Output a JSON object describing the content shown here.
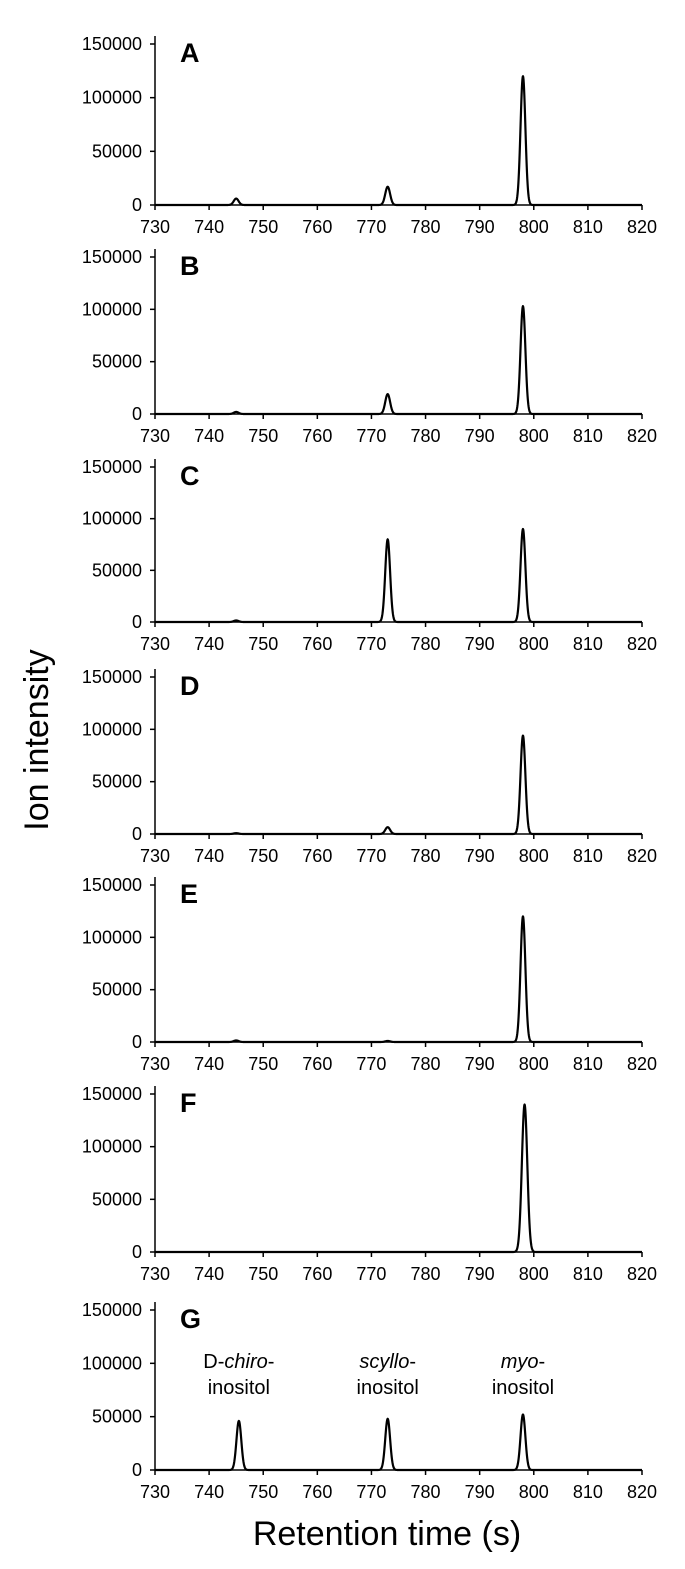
{
  "ylabel": "Ion intensity",
  "xlabel": "Retention time (s)",
  "chart_data": [
    {
      "type": "line",
      "panel": "A",
      "xlim": [
        730,
        820
      ],
      "ylim": [
        0,
        150000
      ],
      "xticks": [
        730,
        740,
        750,
        760,
        770,
        780,
        790,
        800,
        810,
        820
      ],
      "yticks": [
        0,
        50000,
        100000,
        150000
      ],
      "peaks": [
        {
          "x": 745,
          "y": 6000,
          "w": 0.45
        },
        {
          "x": 773,
          "y": 17000,
          "w": 0.45
        },
        {
          "x": 798,
          "y": 120000,
          "w": 0.45
        }
      ],
      "annotations": []
    },
    {
      "type": "line",
      "panel": "B",
      "xlim": [
        730,
        820
      ],
      "ylim": [
        0,
        150000
      ],
      "xticks": [
        730,
        740,
        750,
        760,
        770,
        780,
        790,
        800,
        810,
        820
      ],
      "yticks": [
        0,
        50000,
        100000,
        150000
      ],
      "peaks": [
        {
          "x": 745,
          "y": 2000,
          "w": 0.45
        },
        {
          "x": 773,
          "y": 19000,
          "w": 0.45
        },
        {
          "x": 798,
          "y": 103000,
          "w": 0.45
        }
      ],
      "annotations": []
    },
    {
      "type": "line",
      "panel": "C",
      "xlim": [
        730,
        820
      ],
      "ylim": [
        0,
        150000
      ],
      "xticks": [
        730,
        740,
        750,
        760,
        770,
        780,
        790,
        800,
        810,
        820
      ],
      "yticks": [
        0,
        50000,
        100000,
        150000
      ],
      "peaks": [
        {
          "x": 745,
          "y": 1500,
          "w": 0.45
        },
        {
          "x": 773,
          "y": 80000,
          "w": 0.45
        },
        {
          "x": 798,
          "y": 90000,
          "w": 0.45
        }
      ],
      "annotations": []
    },
    {
      "type": "line",
      "panel": "D",
      "xlim": [
        730,
        820
      ],
      "ylim": [
        0,
        150000
      ],
      "xticks": [
        730,
        740,
        750,
        760,
        770,
        780,
        790,
        800,
        810,
        820
      ],
      "yticks": [
        0,
        50000,
        100000,
        150000
      ],
      "peaks": [
        {
          "x": 745,
          "y": 800,
          "w": 0.45
        },
        {
          "x": 773,
          "y": 6500,
          "w": 0.45
        },
        {
          "x": 798,
          "y": 94000,
          "w": 0.45
        }
      ],
      "annotations": []
    },
    {
      "type": "line",
      "panel": "E",
      "xlim": [
        730,
        820
      ],
      "ylim": [
        0,
        150000
      ],
      "xticks": [
        730,
        740,
        750,
        760,
        770,
        780,
        790,
        800,
        810,
        820
      ],
      "yticks": [
        0,
        50000,
        100000,
        150000
      ],
      "peaks": [
        {
          "x": 745,
          "y": 1500,
          "w": 0.45
        },
        {
          "x": 773,
          "y": 1000,
          "w": 0.45
        },
        {
          "x": 798,
          "y": 120000,
          "w": 0.45
        }
      ],
      "annotations": []
    },
    {
      "type": "line",
      "panel": "F",
      "xlim": [
        730,
        820
      ],
      "ylim": [
        0,
        150000
      ],
      "xticks": [
        730,
        740,
        750,
        760,
        770,
        780,
        790,
        800,
        810,
        820
      ],
      "yticks": [
        0,
        50000,
        100000,
        150000
      ],
      "peaks": [
        {
          "x": 798.3,
          "y": 140000,
          "w": 0.5
        }
      ],
      "annotations": []
    },
    {
      "type": "line",
      "panel": "G",
      "xlim": [
        730,
        820
      ],
      "ylim": [
        0,
        150000
      ],
      "xticks": [
        730,
        740,
        750,
        760,
        770,
        780,
        790,
        800,
        810,
        820
      ],
      "yticks": [
        0,
        50000,
        100000,
        150000
      ],
      "peaks": [
        {
          "x": 745.5,
          "y": 46000,
          "w": 0.45
        },
        {
          "x": 773,
          "y": 48000,
          "w": 0.45
        },
        {
          "x": 798,
          "y": 52000,
          "w": 0.45
        }
      ],
      "annotations": [
        {
          "x": 745.5,
          "line1_prefix": "D-",
          "line1_italic": "chiro",
          "line1_suffix": "-",
          "line2": "inositol"
        },
        {
          "x": 773,
          "line1_prefix": "",
          "line1_italic": "scyllo",
          "line1_suffix": "-",
          "line2": "inositol"
        },
        {
          "x": 798,
          "line1_prefix": "",
          "line1_italic": "myo",
          "line1_suffix": "-",
          "line2": "inositol"
        }
      ]
    }
  ]
}
